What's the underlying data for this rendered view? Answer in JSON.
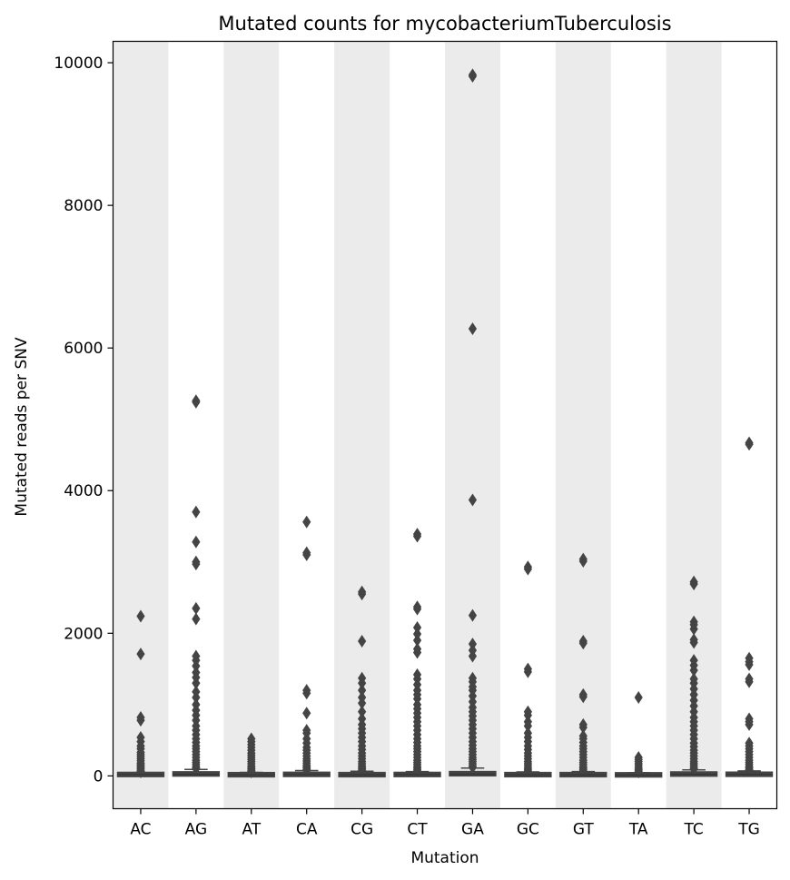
{
  "chart_data": {
    "type": "box",
    "title": "Mutated counts for mycobacteriumTuberculosis",
    "xlabel": "Mutation",
    "ylabel": "Mutated reads per SNV",
    "ylim": [
      -460,
      10300
    ],
    "yticks": [
      0,
      2000,
      4000,
      6000,
      8000,
      10000
    ],
    "grid": false,
    "shaded_bands": "alternating-gray",
    "colors": {
      "box": "#444444",
      "band": "#ebebeb",
      "axes": "#000000"
    },
    "categories": [
      "AC",
      "AG",
      "AT",
      "CA",
      "CG",
      "CT",
      "GA",
      "GC",
      "GT",
      "TA",
      "TC",
      "TG"
    ],
    "boxes": [
      {
        "category": "AC",
        "q1": 8,
        "median": 18,
        "q3": 32,
        "whisker_high": 40,
        "outliers": [
          2240,
          1710,
          820,
          780,
          540,
          480,
          420,
          380,
          330,
          300,
          270,
          240,
          210,
          180,
          160,
          140,
          120,
          100,
          80,
          65,
          55
        ]
      },
      {
        "category": "AG",
        "q1": 10,
        "median": 22,
        "q3": 45,
        "whisker_high": 90,
        "outliers": [
          5260,
          5240,
          3700,
          3280,
          3000,
          2970,
          2350,
          2200,
          1680,
          1620,
          1540,
          1450,
          1380,
          1300,
          1180,
          1100,
          1000,
          920,
          850,
          780,
          700,
          640,
          580,
          520,
          470,
          420,
          380,
          340,
          300,
          260,
          220,
          190,
          160,
          130,
          110,
          100
        ]
      },
      {
        "category": "AT",
        "q1": 6,
        "median": 15,
        "q3": 28,
        "whisker_high": 50,
        "outliers": [
          520,
          480,
          440,
          400,
          360,
          320,
          290,
          260,
          230,
          200,
          170,
          140,
          120,
          100,
          80,
          65,
          55
        ]
      },
      {
        "category": "CA",
        "q1": 8,
        "median": 18,
        "q3": 35,
        "whisker_high": 75,
        "outliers": [
          3560,
          3130,
          3100,
          1200,
          1160,
          880,
          640,
          600,
          520,
          460,
          400,
          360,
          320,
          280,
          240,
          210,
          180,
          150,
          130,
          110,
          90,
          80
        ]
      },
      {
        "category": "CG",
        "q1": 6,
        "median": 16,
        "q3": 30,
        "whisker_high": 65,
        "outliers": [
          2580,
          2550,
          1890,
          1370,
          1300,
          1200,
          1100,
          1020,
          900,
          800,
          720,
          660,
          600,
          540,
          480,
          420,
          370,
          320,
          280,
          240,
          200,
          170,
          140,
          120,
          100,
          80,
          70
        ]
      },
      {
        "category": "CT",
        "q1": 8,
        "median": 18,
        "q3": 32,
        "whisker_high": 60,
        "outliers": [
          3390,
          3360,
          2370,
          2340,
          2080,
          1990,
          1900,
          1780,
          1730,
          1420,
          1360,
          1280,
          1200,
          1140,
          1080,
          1000,
          940,
          880,
          820,
          760,
          700,
          640,
          580,
          520,
          470,
          420,
          380,
          340,
          300,
          260,
          220,
          190,
          160,
          130,
          110,
          90,
          70
        ]
      },
      {
        "category": "GA",
        "q1": 12,
        "median": 25,
        "q3": 50,
        "whisker_high": 110,
        "outliers": [
          9830,
          9810,
          6270,
          3870,
          2250,
          1850,
          1760,
          1680,
          1370,
          1320,
          1250,
          1200,
          1120,
          1040,
          960,
          900,
          840,
          780,
          720,
          660,
          600,
          540,
          480,
          430,
          380,
          340,
          300,
          260,
          230,
          200,
          170,
          140,
          120
        ]
      },
      {
        "category": "GC",
        "q1": 6,
        "median": 15,
        "q3": 30,
        "whisker_high": 55,
        "outliers": [
          2930,
          2900,
          1500,
          1460,
          900,
          850,
          760,
          700,
          600,
          540,
          480,
          420,
          370,
          320,
          280,
          240,
          200,
          170,
          140,
          110,
          90,
          70
        ]
      },
      {
        "category": "GT",
        "q1": 6,
        "median": 15,
        "q3": 30,
        "whisker_high": 60,
        "outliers": [
          3040,
          3010,
          1890,
          1860,
          1140,
          1110,
          720,
          680,
          560,
          520,
          470,
          420,
          380,
          340,
          300,
          260,
          220,
          190,
          160,
          130,
          110,
          90,
          70
        ]
      },
      {
        "category": "TA",
        "q1": 5,
        "median": 12,
        "q3": 25,
        "whisker_high": 45,
        "outliers": [
          1100,
          260,
          230,
          200,
          170,
          140,
          110,
          90,
          70,
          55
        ]
      },
      {
        "category": "TC",
        "q1": 10,
        "median": 22,
        "q3": 42,
        "whisker_high": 85,
        "outliers": [
          2720,
          2690,
          2160,
          2120,
          2060,
          1910,
          1870,
          1620,
          1550,
          1480,
          1360,
          1300,
          1220,
          1140,
          1060,
          980,
          900,
          820,
          760,
          700,
          640,
          580,
          520,
          460,
          410,
          360,
          320,
          280,
          240,
          200,
          170,
          140,
          110,
          95
        ]
      },
      {
        "category": "TG",
        "q1": 8,
        "median": 20,
        "q3": 38,
        "whisker_high": 70,
        "outliers": [
          4670,
          4650,
          1650,
          1600,
          1560,
          1360,
          1320,
          800,
          760,
          720,
          460,
          420,
          380,
          340,
          300,
          260,
          220,
          190,
          160,
          130,
          110,
          90,
          80
        ]
      }
    ]
  }
}
